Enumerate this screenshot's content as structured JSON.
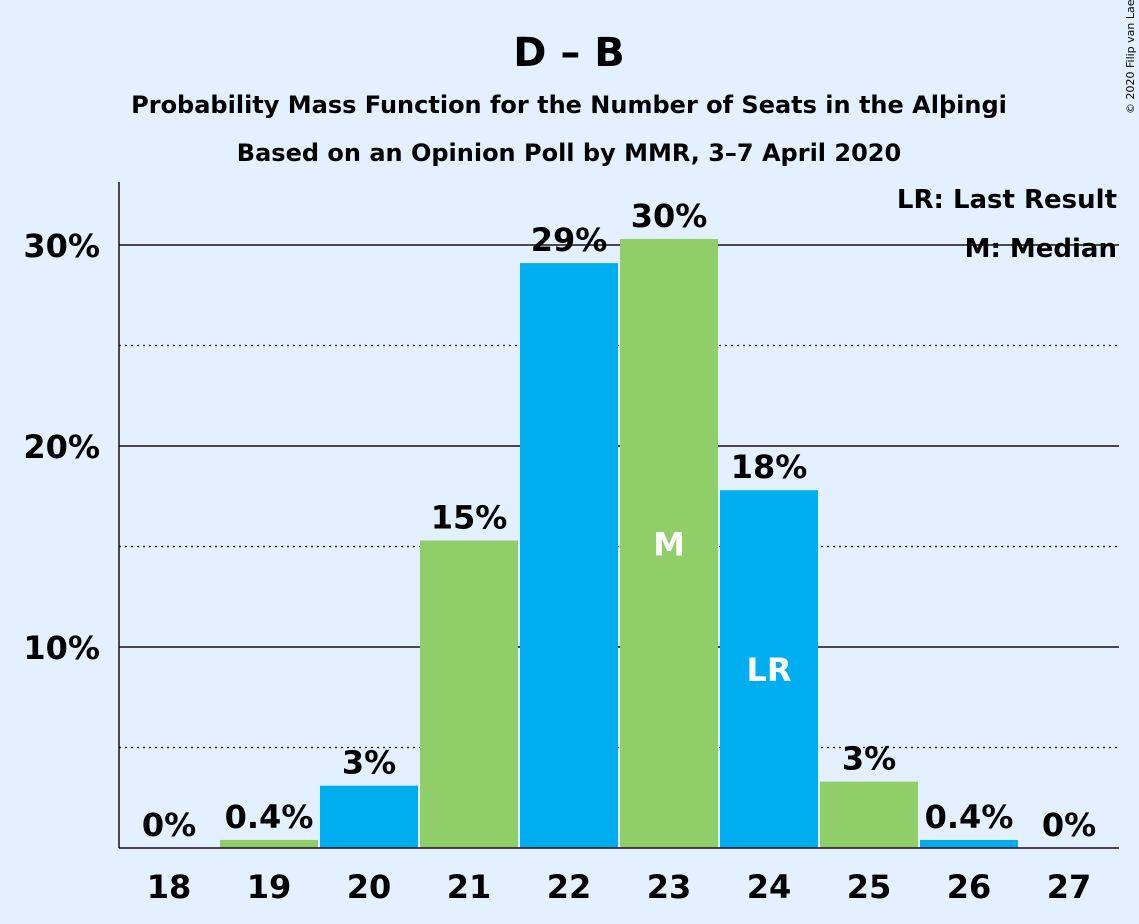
{
  "chart_data": {
    "type": "bar",
    "title": "D – B",
    "subtitle": "Probability Mass Function for the Number of Seats in the Alþingi",
    "subtitle2": "Based on an Opinion Poll by MMR, 3–7 April 2020",
    "copyright": "© 2020 Filip van Laenen",
    "categories": [
      "18",
      "19",
      "20",
      "21",
      "22",
      "23",
      "24",
      "25",
      "26",
      "27"
    ],
    "values": [
      0,
      0.4,
      3.1,
      15.3,
      29.1,
      30.3,
      17.8,
      3.3,
      0.4,
      0
    ],
    "value_labels": [
      "0%",
      "0.4%",
      "3%",
      "15%",
      "29%",
      "30%",
      "18%",
      "3%",
      "0.4%",
      "0%"
    ],
    "bar_colors": [
      "#00aeef",
      "#8fce68",
      "#00aeef",
      "#8fce68",
      "#00aeef",
      "#8fce68",
      "#00aeef",
      "#8fce68",
      "#00aeef",
      "#8fce68"
    ],
    "bar_markers": [
      "",
      "",
      "",
      "",
      "",
      "M",
      "LR",
      "",
      "",
      ""
    ],
    "ylim": [
      0,
      33
    ],
    "yticks": [
      10,
      20,
      30
    ],
    "ytick_labels": [
      "10%",
      "20%",
      "30%"
    ],
    "minor_gridlines": [
      5,
      15,
      25
    ],
    "grid": true,
    "legend_position": "top-right",
    "legend": [
      "LR: Last Result",
      "M: Median"
    ],
    "colors": {
      "background": "#e2f0ff",
      "text": "#1a0f14",
      "blue": "#00aeef",
      "green": "#8fce68"
    }
  }
}
